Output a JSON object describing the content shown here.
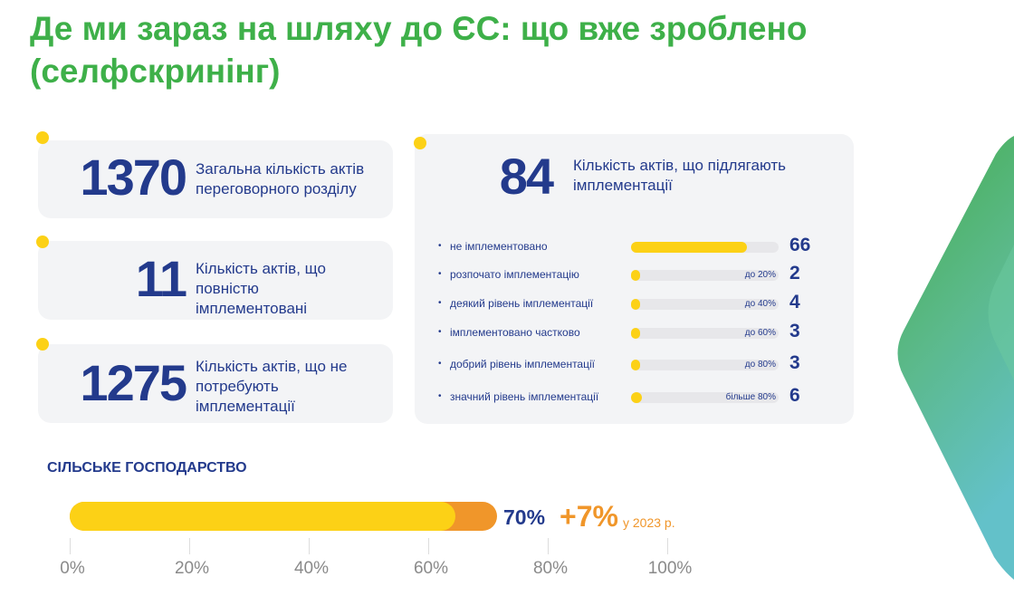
{
  "title": "Де ми зараз на шляху до ЄС: що вже зроблено (селфскринінг)",
  "stats": [
    {
      "number": "1370",
      "label": "Загальна кількість актів переговорного розділу"
    },
    {
      "number": "11",
      "label": "Кількість актів, що повністю імплементовані"
    },
    {
      "number": "1275",
      "label": "Кількість актів, що не потребують імплементації"
    }
  ],
  "impl": {
    "number": "84",
    "label": "Кількість актів, що підлягають імплементації"
  },
  "colors": {
    "green": "#3eb049",
    "navy": "#233a8c",
    "yellow": "#fcd116",
    "orange": "#f0962a"
  },
  "chart_data": [
    {
      "type": "bar",
      "title": "Кількість актів, що підлягають імплементації",
      "categories": [
        "не імплементовано",
        "розпочато імплементацію",
        "деякий рівень імплементації",
        "імплементовано частково",
        "добрий рівень імплементації",
        "значний рівень імплементації"
      ],
      "range_labels": [
        "",
        "до 20%",
        "до 40%",
        "до 60%",
        "до 80%",
        "більше 80%"
      ],
      "values": [
        66,
        2,
        4,
        3,
        3,
        6
      ],
      "total": 84
    },
    {
      "type": "bar",
      "title": "СІЛЬСЬКЕ ГОСПОДАРСТВО",
      "value": 70,
      "value_label": "70%",
      "base": 63,
      "increase_label": "+7%",
      "increase_note": "у 2023 р.",
      "ticks": [
        "0%",
        "20%",
        "40%",
        "60%",
        "80%",
        "100%"
      ],
      "xlim": [
        0,
        100
      ]
    }
  ]
}
